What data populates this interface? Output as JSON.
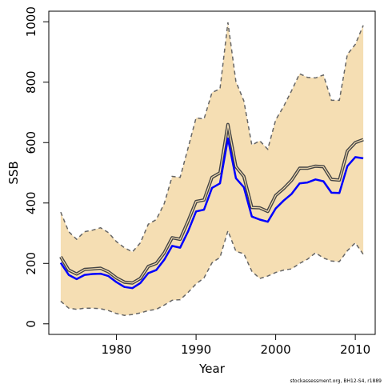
{
  "chart_data": {
    "type": "line",
    "title": "",
    "xlabel": "Year",
    "ylabel": "SSB",
    "xlim": [
      1971.5,
      2012.5
    ],
    "ylim": [
      -35,
      1035
    ],
    "xticks": [
      1980,
      1990,
      2000,
      2010
    ],
    "yticks": [
      0,
      200,
      400,
      600,
      800,
      1000
    ],
    "grid": false,
    "legend": "none",
    "footnote": "stockassessment.org, BH12-S4, r1889",
    "colors": {
      "band_fill": "#f5deb3",
      "band_edge": "#666666",
      "median_line": "#444444",
      "point_line": "#0000ff"
    },
    "x": [
      1973,
      1974,
      1975,
      1976,
      1977,
      1978,
      1979,
      1980,
      1981,
      1982,
      1983,
      1984,
      1985,
      1986,
      1987,
      1988,
      1989,
      1990,
      1991,
      1992,
      1993,
      1994,
      1995,
      1996,
      1997,
      1998,
      1999,
      2000,
      2001,
      2002,
      2003,
      2004,
      2005,
      2006,
      2007,
      2008,
      2009,
      2010,
      2011
    ],
    "series": [
      {
        "role": "upper-bound",
        "values": [
          370,
          305,
          280,
          305,
          310,
          318,
          302,
          272,
          252,
          238,
          268,
          330,
          345,
          398,
          488,
          485,
          582,
          682,
          678,
          766,
          778,
          998,
          802,
          738,
          592,
          606,
          578,
          675,
          720,
          772,
          828,
          816,
          814,
          824,
          740,
          740,
          892,
          925,
          988
        ]
      },
      {
        "role": "lower-bound",
        "values": [
          75,
          52,
          48,
          52,
          52,
          50,
          44,
          34,
          28,
          31,
          36,
          44,
          48,
          62,
          78,
          80,
          104,
          132,
          152,
          202,
          220,
          308,
          240,
          232,
          174,
          150,
          158,
          170,
          178,
          182,
          200,
          214,
          235,
          218,
          208,
          206,
          242,
          268,
          230
        ]
      },
      {
        "role": "median",
        "values": [
          222,
          178,
          165,
          180,
          182,
          184,
          172,
          152,
          138,
          135,
          150,
          190,
          200,
          235,
          285,
          280,
          340,
          405,
          410,
          485,
          500,
          660,
          520,
          488,
          385,
          384,
          372,
          425,
          448,
          475,
          515,
          515,
          522,
          520,
          478,
          476,
          572,
          600,
          610
        ]
      },
      {
        "role": "point-estimate",
        "values": [
          202,
          162,
          148,
          162,
          165,
          166,
          158,
          138,
          122,
          118,
          135,
          168,
          178,
          212,
          258,
          252,
          306,
          372,
          378,
          450,
          465,
          614,
          482,
          452,
          355,
          345,
          338,
          382,
          408,
          430,
          465,
          468,
          478,
          472,
          434,
          433,
          522,
          552,
          548
        ]
      }
    ]
  }
}
